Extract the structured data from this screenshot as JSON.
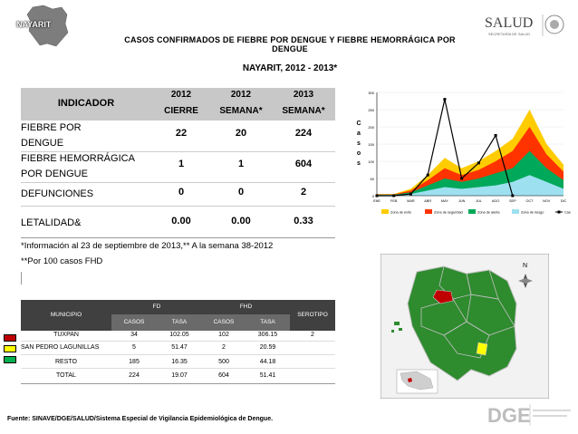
{
  "header": {
    "state_label": "NAYARIT",
    "title": "CASOS CONFIRMADOS DE FIEBRE POR DENGUE Y FIEBRE HEMORRÁGICA POR DENGUE",
    "subtitle": "NAYARIT, 2012 - 2013*",
    "logo_name": "SALUD",
    "logo_subtitle": "SECRETARÍA DE SALUD"
  },
  "indicator_table": {
    "col_indicator": "INDICADOR",
    "col1_year": "2012",
    "col1_sub": "CIERRE",
    "col2_year": "2012",
    "col2_sub": "SEMANA*",
    "col3_year": "2013",
    "col3_sub": "SEMANA*",
    "rows": [
      {
        "label1": "FIEBRE POR",
        "label2": "DENGUE",
        "v1": "22",
        "v2": "20",
        "v3": "224"
      },
      {
        "label1": "FIEBRE HEMORRÁGICA",
        "label2": "POR DENGUE",
        "v1": "1",
        "v2": "1",
        "v3": "604"
      },
      {
        "label1": "DEFUNCIONES",
        "label2": "",
        "v1": "0",
        "v2": "0",
        "v3": "2"
      },
      {
        "label1": "LETALIDAD&",
        "label2": "",
        "v1": "0.00",
        "v2": "0.00",
        "v3": "0.33"
      }
    ]
  },
  "notes": {
    "note1": "*Información al 23 de septiembre de 2013,** A la semana 38-2012",
    "note2": "**Por 100 casos FHD"
  },
  "municipio_table": {
    "col_municipio": "MUNICIPIO",
    "col_fd": "FD",
    "col_fhd": "FHD",
    "col_serotipo": "SEROTIPO",
    "sub_casos": "CASOS",
    "sub_tasa": "TASA",
    "rows": [
      {
        "name": "TUXPAN",
        "color": "#c00000",
        "fd_casos": "34",
        "fd_tasa": "102.05",
        "fhd_casos": "102",
        "fhd_tasa": "306.15",
        "serotipo": "2"
      },
      {
        "name": "SAN PEDRO LAGUNILLAS",
        "color": "#ffff00",
        "fd_casos": "5",
        "fd_tasa": "51.47",
        "fhd_casos": "2",
        "fhd_tasa": "20.59",
        "serotipo": ""
      },
      {
        "name": "RESTO",
        "color": "#00b050",
        "fd_casos": "185",
        "fd_tasa": "16.35",
        "fhd_casos": "500",
        "fhd_tasa": "44.18",
        "serotipo": ""
      },
      {
        "name": "TOTAL",
        "color": "",
        "fd_casos": "224",
        "fd_tasa": "19.07",
        "fhd_casos": "604",
        "fhd_tasa": "51.41",
        "serotipo": ""
      }
    ]
  },
  "source": "Fuente: SINAVE/DGE/SALUD/Sistema Especial de Vigilancia Epidemiológica de Dengue.",
  "chart_data": {
    "type": "area",
    "ylabel": "C a s o s",
    "ylim": [
      0,
      300
    ],
    "yticks": [
      0,
      50,
      100,
      150,
      200,
      250,
      300
    ],
    "categories": [
      "ENE",
      "FEB",
      "MAR",
      "ABR",
      "MAY",
      "JUN",
      "JUL",
      "AGO",
      "SEP",
      "OCT",
      "NOV",
      "DIC"
    ],
    "legend_position": "bottom",
    "series": [
      {
        "name": "Zona de éxito",
        "color": "#ffcc00",
        "kind": "area",
        "values": [
          5,
          5,
          20,
          60,
          110,
          80,
          100,
          130,
          165,
          250,
          150,
          90
        ]
      },
      {
        "name": "Zona de seguridad",
        "color": "#ff3300",
        "kind": "area",
        "values": [
          4,
          4,
          15,
          45,
          80,
          60,
          75,
          100,
          130,
          200,
          120,
          70
        ]
      },
      {
        "name": "Zona de alerta",
        "color": "#00a859",
        "kind": "area",
        "values": [
          3,
          3,
          10,
          30,
          50,
          40,
          50,
          65,
          80,
          130,
          80,
          45
        ]
      },
      {
        "name": "Zona de riesgo",
        "color": "#9de0f0",
        "kind": "area",
        "values": [
          2,
          2,
          5,
          15,
          25,
          20,
          25,
          30,
          40,
          60,
          40,
          20
        ]
      },
      {
        "name": "Casos Confirmados",
        "color": "#000000",
        "kind": "line",
        "values": [
          0,
          0,
          5,
          60,
          280,
          50,
          95,
          175,
          0,
          null,
          null,
          null
        ]
      }
    ]
  }
}
